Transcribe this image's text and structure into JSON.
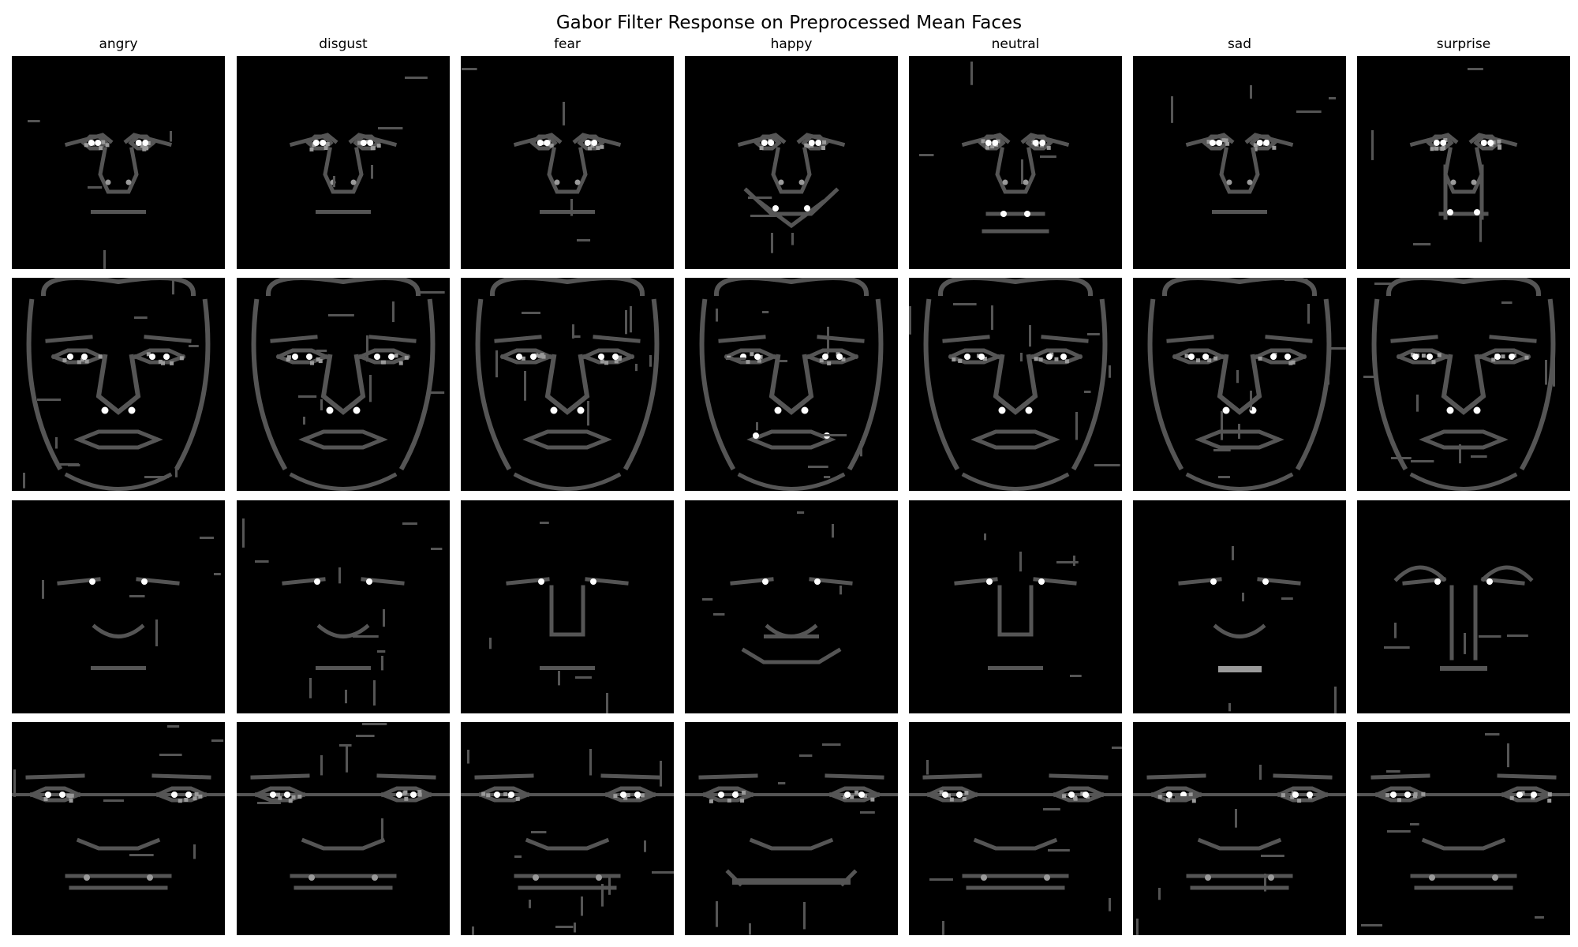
{
  "figure": {
    "title": "Gabor Filter Response on Preprocessed Mean Faces",
    "columns": [
      "angry",
      "disgust",
      "fear",
      "happy",
      "neutral",
      "sad",
      "surprise"
    ],
    "rows": 4
  },
  "colors": {
    "background": "#ffffff",
    "panel": "#000000",
    "response_low": "#555555",
    "response_mid": "#9a9a9a",
    "response_high": "#ffffff"
  }
}
